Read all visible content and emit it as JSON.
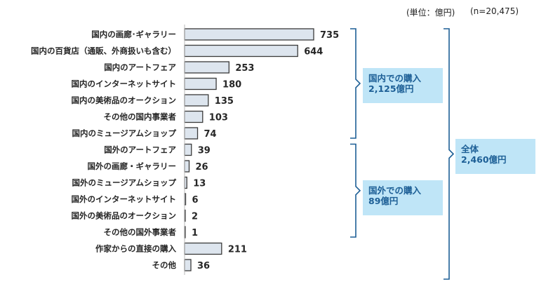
{
  "header": {
    "unit_note": "(単位：億円)",
    "n_note": "(n=20,475)"
  },
  "chart_data": {
    "type": "bar",
    "orientation": "horizontal",
    "categories": [
      "国内の画廊･ギャラリー",
      "国内の百貨店（通販、外商扱いも含む）",
      "国内のアートフェア",
      "国内のインターネットサイト",
      "国内の美術品のオークション",
      "その他の国内事業者",
      "国内のミュージアムショップ",
      "国外のアートフェア",
      "国外の画廊・ギャラリー",
      "国外のミュージアムショップ",
      "国外のインターネットサイト",
      "国外の美術品のオークション",
      "その他の国外事業者",
      "作家からの直接の購入",
      "その他"
    ],
    "values": [
      735,
      644,
      253,
      180,
      135,
      103,
      74,
      39,
      26,
      13,
      6,
      2,
      1,
      211,
      36
    ],
    "xlim": [
      0,
      735
    ],
    "unit": "億円",
    "bar_color": "#dde5ee",
    "bar_edge": "#3a3a3a",
    "bracket_color": "#1d5f96",
    "groups": [
      {
        "label_line1": "国内での購入",
        "label_line2": "2,125億円",
        "range": [
          0,
          6
        ]
      },
      {
        "label_line1": "国外での購入",
        "label_line2": "89億円",
        "range": [
          7,
          12
        ]
      },
      {
        "label_line1": "全体",
        "label_line2": "2,460億円",
        "range": [
          0,
          14
        ]
      }
    ]
  }
}
